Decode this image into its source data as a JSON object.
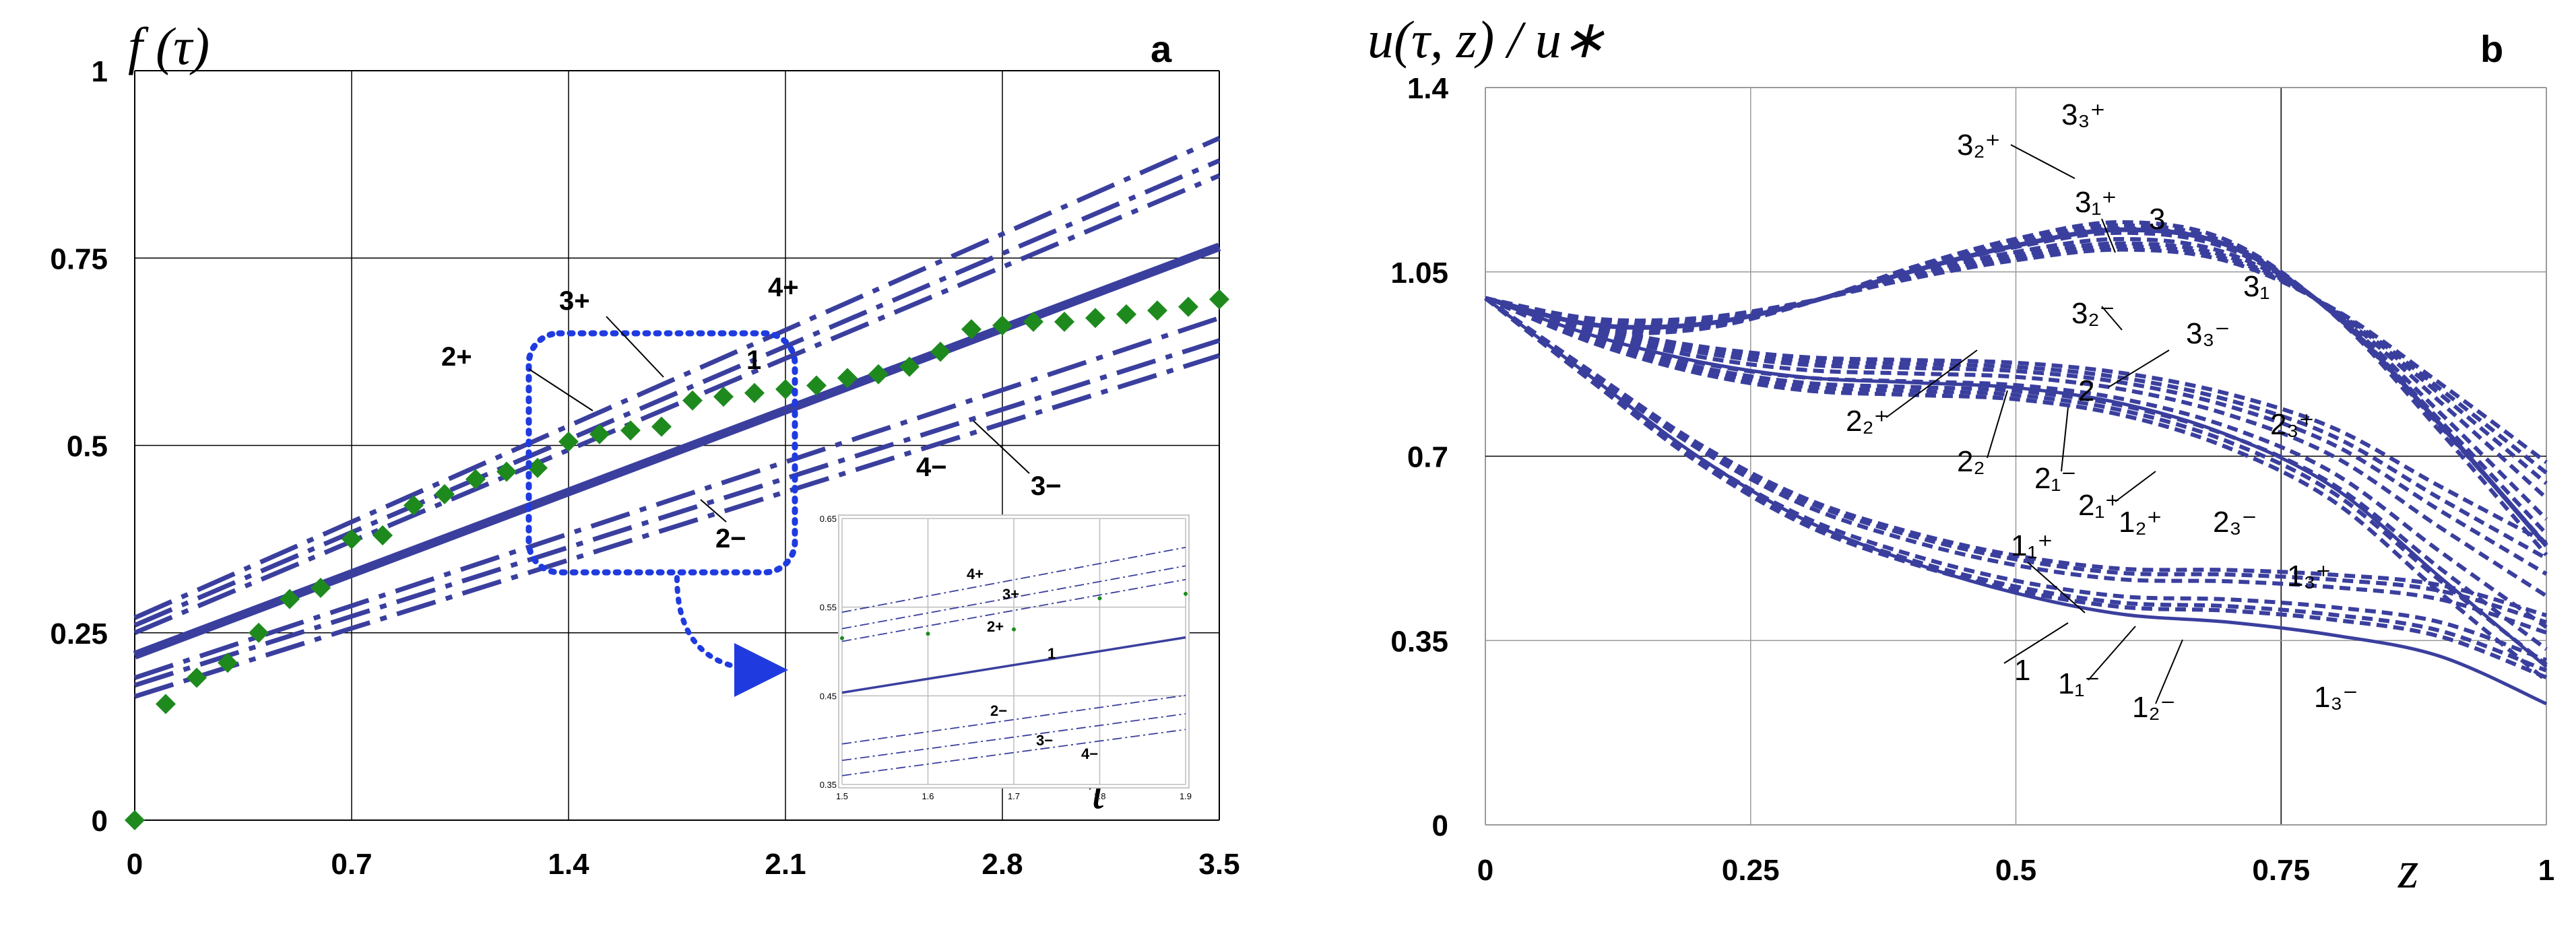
{
  "chart_data": [
    {
      "type": "line",
      "panel_label": "a",
      "ylabel": "f (τ)",
      "xlabel": "τ",
      "xlim": [
        0,
        3.5
      ],
      "ylim": [
        0,
        1
      ],
      "x_ticks": [
        "0",
        "0.7",
        "1.4",
        "2.1",
        "2.8",
        "3.5"
      ],
      "y_ticks": [
        "0",
        "0.25",
        "0.5",
        "0.75",
        "1"
      ],
      "grid": true,
      "series": [
        {
          "name": "1",
          "style": "solid-thick",
          "x": [
            0,
            3.5
          ],
          "y": [
            0.22,
            0.765
          ]
        },
        {
          "name": "2+",
          "style": "dashdot",
          "x": [
            0,
            3.5
          ],
          "y": [
            0.25,
            0.86
          ]
        },
        {
          "name": "3+",
          "style": "dashdot",
          "x": [
            0,
            3.5
          ],
          "y": [
            0.26,
            0.88
          ]
        },
        {
          "name": "4+",
          "style": "dashdot",
          "x": [
            0,
            3.5
          ],
          "y": [
            0.27,
            0.91
          ]
        },
        {
          "name": "2−",
          "style": "dashdot",
          "x": [
            0,
            3.5
          ],
          "y": [
            0.19,
            0.67
          ]
        },
        {
          "name": "3−",
          "style": "dashdot",
          "x": [
            0,
            3.5
          ],
          "y": [
            0.18,
            0.64
          ]
        },
        {
          "name": "4−",
          "style": "dashdot",
          "x": [
            0,
            3.5
          ],
          "y": [
            0.165,
            0.62
          ]
        },
        {
          "name": "data",
          "style": "markers",
          "x": [
            0,
            0.1,
            0.2,
            0.3,
            0.4,
            0.5,
            0.6,
            0.7,
            0.8,
            0.9,
            1.0,
            1.1,
            1.2,
            1.3,
            1.4,
            1.5,
            1.6,
            1.7,
            1.8,
            1.9,
            2.0,
            2.1,
            2.2,
            2.3,
            2.4,
            2.5,
            2.6,
            2.7,
            2.8,
            2.9,
            3.0,
            3.1,
            3.2,
            3.3,
            3.4,
            3.5
          ],
          "y": [
            0,
            0.155,
            0.19,
            0.21,
            0.25,
            0.295,
            0.31,
            0.375,
            0.38,
            0.42,
            0.435,
            0.455,
            0.465,
            0.47,
            0.505,
            0.515,
            0.52,
            0.525,
            0.56,
            0.565,
            0.57,
            0.575,
            0.58,
            0.59,
            0.595,
            0.605,
            0.625,
            0.655,
            0.66,
            0.665,
            0.665,
            0.67,
            0.675,
            0.68,
            0.685,
            0.695
          ]
        }
      ],
      "inset": {
        "xlim": [
          1.5,
          1.9
        ],
        "ylim": [
          0.35,
          0.65
        ],
        "x_ticks": [
          "1.5",
          "1.6",
          "1.7",
          "1.8",
          "1.9"
        ],
        "y_ticks": [
          "0.35",
          "0.45",
          "0.55",
          "0.65"
        ],
        "labels": [
          "4+",
          "3+",
          "2+",
          "1",
          "2−",
          "3−",
          "4−"
        ]
      }
    },
    {
      "type": "line",
      "panel_label": "b",
      "ylabel": "u(τ, z) / u∗",
      "xlabel": "z",
      "xlim": [
        0,
        1
      ],
      "ylim": [
        0,
        1.4
      ],
      "x_ticks": [
        "0",
        "0.25",
        "0.5",
        "0.75",
        "1"
      ],
      "y_ticks": [
        "0",
        "0.35",
        "0.7",
        "1.05",
        "1.4"
      ],
      "grid": true,
      "series": [
        {
          "name": "1",
          "style": "solid",
          "x": [
            0,
            0.1,
            0.2,
            0.3,
            0.4,
            0.5,
            0.6,
            0.7,
            0.8,
            0.9,
            1.0
          ],
          "y": [
            1.0,
            0.85,
            0.7,
            0.58,
            0.5,
            0.44,
            0.4,
            0.385,
            0.36,
            0.32,
            0.23
          ]
        },
        {
          "name": "2",
          "style": "solid",
          "x": [
            0,
            0.1,
            0.2,
            0.3,
            0.4,
            0.5,
            0.6,
            0.7,
            0.8,
            0.9,
            1.0
          ],
          "y": [
            1.0,
            0.93,
            0.88,
            0.85,
            0.84,
            0.83,
            0.8,
            0.74,
            0.64,
            0.47,
            0.3
          ]
        },
        {
          "name": "3",
          "style": "solid",
          "x": [
            0,
            0.1,
            0.2,
            0.3,
            0.4,
            0.5,
            0.6,
            0.7,
            0.8,
            0.9,
            1.0
          ],
          "y": [
            1.0,
            0.95,
            0.95,
            0.99,
            1.05,
            1.1,
            1.13,
            1.1,
            0.97,
            0.76,
            0.53
          ]
        }
      ],
      "curve_labels": [
        "3₃⁺",
        "3₂⁺",
        "3₁⁺",
        "3",
        "3₂⁻",
        "3₃⁻",
        "3₁",
        "2₂⁺",
        "2₂",
        "2₁⁻",
        "2",
        "2₁⁺",
        "1₂⁺",
        "2₃⁻",
        "2₃⁺",
        "1₁⁺",
        "1₃⁺",
        "1",
        "1₁⁻",
        "1₂⁻",
        "1₃⁻"
      ]
    }
  ]
}
